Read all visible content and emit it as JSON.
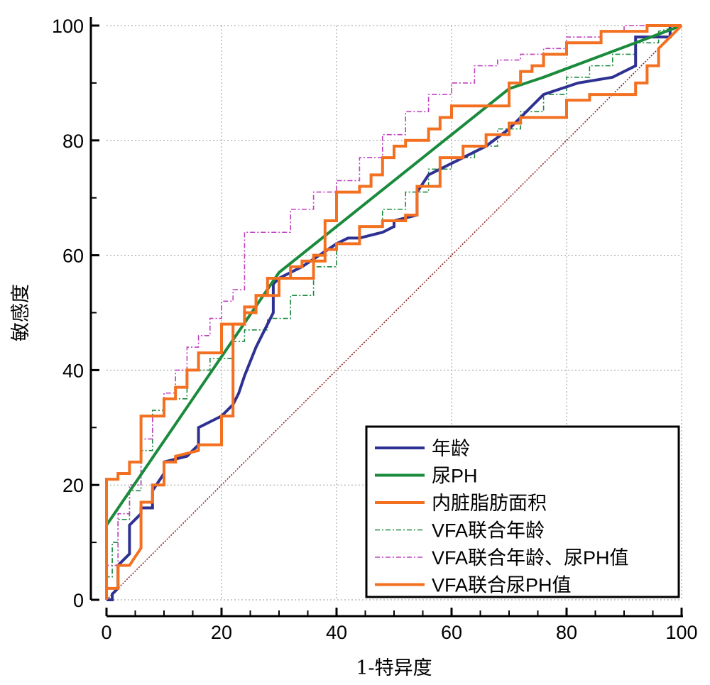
{
  "chart_data": {
    "type": "line",
    "title": "",
    "xlabel": "1-特异度",
    "ylabel": "敏感度",
    "xlim": [
      0,
      100
    ],
    "ylim": [
      0,
      100
    ],
    "xticks": [
      "0",
      "20",
      "40",
      "60",
      "80",
      "100"
    ],
    "yticks": [
      "0",
      "20",
      "40",
      "60",
      "80",
      "100"
    ],
    "grid": true,
    "legend_position": "bottom-right",
    "reference_line": {
      "x": [
        0,
        100
      ],
      "y": [
        0,
        100
      ],
      "color": "#8b1a1a"
    },
    "series": [
      {
        "name": "年龄",
        "color": "#2e3192",
        "style": "solid",
        "x": [
          0,
          1,
          1,
          2,
          2,
          4,
          4,
          6,
          6,
          8,
          8,
          10,
          10,
          14,
          16,
          16,
          20,
          22,
          23,
          24,
          26,
          28,
          29,
          29,
          30,
          34,
          40,
          42,
          44,
          48,
          50,
          50,
          54,
          54,
          56,
          60,
          62,
          66,
          70,
          74,
          76,
          82,
          88,
          90,
          92,
          92,
          96,
          98,
          98,
          100
        ],
        "y": [
          0,
          0,
          1,
          2,
          6,
          8,
          13,
          15,
          16,
          16,
          19,
          22,
          24,
          25,
          27,
          30,
          32,
          34,
          36,
          39,
          44,
          48,
          50,
          55,
          56,
          58,
          62,
          63,
          63,
          64,
          65,
          66,
          67,
          71,
          74,
          76,
          77,
          79,
          82,
          86,
          88,
          90,
          91,
          92,
          93,
          98,
          98,
          98,
          100,
          100
        ]
      },
      {
        "name": "尿PH",
        "color": "#1a8a3c",
        "style": "solid",
        "x": [
          0,
          30,
          70,
          76,
          100
        ],
        "y": [
          13,
          57,
          89,
          91,
          100
        ]
      },
      {
        "name": "内脏脂肪面积",
        "color": "#f37021",
        "style": "solid",
        "x": [
          0,
          0,
          2,
          2,
          4,
          6,
          6,
          8,
          8,
          10,
          10,
          12,
          12,
          16,
          16,
          20,
          20,
          22,
          22,
          24,
          24,
          26,
          26,
          28,
          28,
          32,
          32,
          34,
          34,
          38,
          38,
          40,
          40,
          44,
          44,
          48,
          48,
          52,
          52,
          54,
          54,
          58,
          58,
          62,
          62,
          66,
          66,
          70,
          70,
          72,
          72,
          80,
          80,
          84,
          84,
          88,
          88,
          92,
          92,
          94,
          94,
          96,
          96,
          100
        ],
        "y": [
          0,
          2,
          2,
          6,
          6,
          9,
          17,
          17,
          20,
          20,
          24,
          24,
          25,
          26,
          27,
          27,
          32,
          32,
          48,
          48,
          50,
          50,
          53,
          53,
          56,
          56,
          58,
          58,
          59,
          59,
          61,
          61,
          62,
          62,
          65,
          65,
          66,
          66,
          67,
          67,
          72,
          72,
          77,
          77,
          79,
          79,
          81,
          81,
          83,
          83,
          84,
          84,
          87,
          87,
          88,
          88,
          88,
          88,
          90,
          90,
          93,
          93,
          96,
          100
        ]
      },
      {
        "name": "VFA联合年龄",
        "color": "#1a8a3c",
        "style": "dashdot",
        "x": [
          0,
          0,
          1,
          1,
          2,
          2,
          4,
          4,
          6,
          6,
          8,
          8,
          10,
          10,
          14,
          14,
          18,
          18,
          22,
          22,
          24,
          24,
          28,
          28,
          32,
          32,
          36,
          36,
          40,
          40,
          44,
          44,
          48,
          48,
          52,
          52,
          56,
          56,
          60,
          60,
          64,
          64,
          68,
          68,
          72,
          72,
          76,
          76,
          80,
          80,
          84,
          84,
          88,
          88,
          92,
          92,
          96,
          96,
          100
        ],
        "y": [
          0,
          4,
          4,
          10,
          10,
          14,
          14,
          19,
          19,
          26,
          26,
          33,
          33,
          35,
          35,
          40,
          40,
          42,
          42,
          45,
          45,
          47,
          47,
          49,
          49,
          53,
          53,
          58,
          58,
          62,
          62,
          65,
          65,
          68,
          68,
          71,
          71,
          75,
          75,
          77,
          77,
          79,
          79,
          82,
          82,
          85,
          85,
          88,
          88,
          91,
          91,
          93,
          93,
          95,
          95,
          97,
          97,
          99,
          100
        ]
      },
      {
        "name": "VFA联合年龄、尿PH值",
        "color": "#c040c0",
        "style": "dashdot",
        "x": [
          0,
          0,
          2,
          2,
          4,
          4,
          6,
          6,
          8,
          8,
          10,
          10,
          12,
          12,
          14,
          14,
          16,
          16,
          18,
          18,
          20,
          20,
          22,
          22,
          24,
          24,
          28,
          28,
          32,
          32,
          36,
          36,
          40,
          40,
          44,
          44,
          48,
          48,
          52,
          52,
          56,
          56,
          60,
          60,
          64,
          64,
          68,
          68,
          72,
          72,
          76,
          76,
          80,
          80,
          86,
          86,
          90,
          90,
          94,
          94,
          100
        ],
        "y": [
          0,
          6,
          6,
          15,
          15,
          20,
          20,
          28,
          28,
          32,
          32,
          36,
          36,
          40,
          40,
          44,
          44,
          46,
          46,
          49,
          49,
          52,
          52,
          54,
          54,
          64,
          64,
          64,
          64,
          68,
          68,
          71,
          71,
          73,
          73,
          77,
          77,
          81,
          81,
          85,
          85,
          88,
          88,
          90,
          90,
          93,
          93,
          94,
          94,
          95,
          95,
          96,
          96,
          98,
          98,
          99,
          99,
          100,
          100,
          100,
          100
        ]
      },
      {
        "name": "VFA联合尿PH值",
        "color": "#f37021",
        "style": "solid",
        "x": [
          0,
          0,
          2,
          2,
          4,
          4,
          6,
          6,
          10,
          10,
          12,
          12,
          14,
          14,
          16,
          16,
          20,
          20,
          24,
          24,
          26,
          26,
          30,
          30,
          36,
          36,
          38,
          38,
          40,
          40,
          44,
          44,
          46,
          46,
          48,
          48,
          50,
          50,
          52,
          52,
          56,
          56,
          58,
          58,
          60,
          60,
          62,
          62,
          70,
          70,
          72,
          72,
          74,
          74,
          76,
          76,
          80,
          80,
          86,
          86,
          94,
          94,
          100
        ],
        "y": [
          0,
          21,
          21,
          22,
          22,
          24,
          24,
          32,
          32,
          35,
          35,
          37,
          37,
          40,
          40,
          43,
          43,
          48,
          48,
          51,
          51,
          53,
          53,
          56,
          56,
          60,
          60,
          66,
          66,
          71,
          71,
          72,
          72,
          74,
          74,
          77,
          77,
          79,
          79,
          80,
          80,
          82,
          82,
          84,
          84,
          86,
          86,
          86,
          86,
          90,
          90,
          92,
          92,
          93,
          93,
          95,
          95,
          97,
          97,
          99,
          99,
          100,
          100
        ]
      }
    ]
  }
}
